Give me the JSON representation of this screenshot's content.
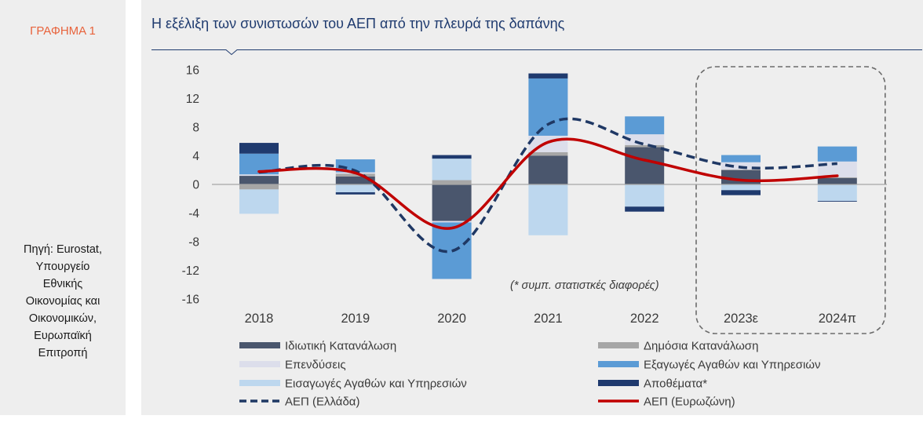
{
  "figure": {
    "label": "ΓΡΑΦΗΜΑ 1"
  },
  "source": {
    "lines": [
      "Πηγή: Eurostat,",
      "Υπουργείο",
      "Εθνικής",
      "Οικονομίας και",
      "Οικονομικών,",
      "Ευρωπαϊκή",
      "Επιτροπή"
    ]
  },
  "colors": {
    "figure_label": "#e8633c",
    "title": "#1f3b6f",
    "panel_background": "#eeeeee",
    "axis": "#a6a6a6"
  },
  "chart_data": {
    "type": "bar",
    "stacked": true,
    "title": "Η εξέλιξη των συνιστωσών του ΑΕΠ από την πλευρά της δαπάνης",
    "xlabel": "",
    "ylabel": "",
    "ylim": [
      -16,
      16
    ],
    "yticks": [
      16,
      12,
      8,
      4,
      0,
      -4,
      -8,
      -12,
      -16
    ],
    "grid": false,
    "legend_position": "bottom",
    "categories": [
      "2018",
      "2019",
      "2020",
      "2021",
      "2022",
      "2023ε",
      "2024π"
    ],
    "series": [
      {
        "name": "Ιδιωτική Κατανάλωση",
        "color": "#4a566d",
        "values": [
          1.2,
          1.1,
          -5.1,
          4.0,
          5.2,
          2.0,
          0.9
        ]
      },
      {
        "name": "Δημόσια Κατανάλωση",
        "color": "#a6a6a6",
        "values": [
          -0.7,
          0.4,
          0.6,
          0.5,
          0.3,
          0.1,
          0.1
        ]
      },
      {
        "name": "Επενδύσεις",
        "color": "#dcdeeb",
        "values": [
          0.2,
          0.2,
          -0.2,
          2.3,
          1.5,
          1.0,
          2.2
        ]
      },
      {
        "name": "Εξαγωγές Αγαθών και Υπηρεσιών",
        "color": "#5b9bd5",
        "values": [
          2.9,
          1.8,
          -7.9,
          8.0,
          2.5,
          1.0,
          2.1
        ]
      },
      {
        "name": "Εισαγωγές Αγαθών και Υπηρεσιών",
        "color": "#bdd7ee",
        "values": [
          -3.4,
          -1.1,
          3.0,
          -7.1,
          -3.1,
          -0.8,
          -2.3
        ]
      },
      {
        "name": "Αποθέματα*",
        "color": "#1f3a6e",
        "values": [
          1.5,
          -0.3,
          0.5,
          0.7,
          -0.7,
          -0.7,
          -0.1
        ]
      }
    ],
    "line_series": [
      {
        "name": "ΑΕΠ (Ελλάδα)",
        "color": "#1f3864",
        "style": "dashed",
        "values": [
          1.7,
          1.9,
          -9.3,
          8.4,
          5.6,
          2.4,
          2.9
        ]
      },
      {
        "name": "ΑΕΠ (Ευρωζώνη)",
        "color": "#c00000",
        "style": "solid",
        "values": [
          1.8,
          1.6,
          -6.1,
          5.9,
          3.4,
          0.6,
          1.2
        ]
      }
    ],
    "annotation": "(* συμπ. στατιστκές διαφορές)",
    "highlight": {
      "category_index_range": [
        5,
        6
      ],
      "border": "dashed"
    }
  }
}
